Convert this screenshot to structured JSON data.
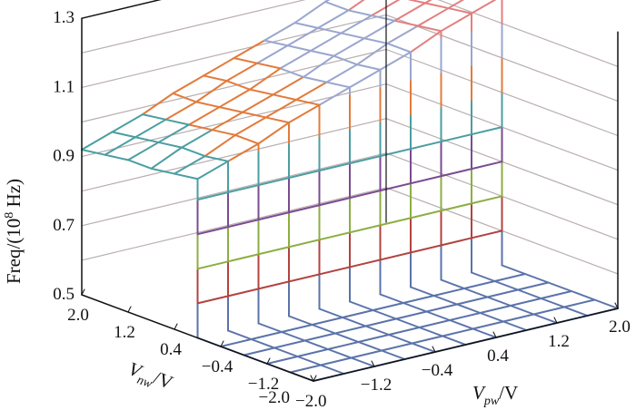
{
  "chart_data": {
    "type": "surface3d",
    "zlabel": "Freq/(10⁸ Hz)",
    "xlabel": "V_nw /V",
    "ylabel": "V_pw /V",
    "xlabel_main": "V",
    "xlabel_sub": "nw",
    "xlabel_unit": "/V",
    "ylabel_main": "V",
    "ylabel_sub": "pw",
    "ylabel_unit": "/V",
    "zlabel_text": "Freq/(10",
    "zlabel_sup": "8",
    "zlabel_end": " Hz)",
    "zlim": [
      0.5,
      1.3
    ],
    "xlim": [
      -2.0,
      2.0
    ],
    "ylim": [
      -2.0,
      2.0
    ],
    "z_ticks": [
      "0.5",
      "0.7",
      "0.9",
      "1.1",
      "1.3"
    ],
    "x_ticks": [
      "2.0",
      "1.2",
      "0.4",
      "−0.4",
      "−1.2",
      "−2.0"
    ],
    "x_tick_values": [
      2.0,
      1.2,
      0.4,
      -0.4,
      -1.2,
      -2.0
    ],
    "y_ticks": [
      "−2.0",
      "−1.2",
      "−0.4",
      "0.4",
      "1.2",
      "2.0"
    ],
    "y_tick_values": [
      -2.0,
      -1.2,
      -0.4,
      0.4,
      1.2,
      2.0
    ],
    "grid": true,
    "vnw": [
      -2.0,
      -1.6,
      -1.2,
      -0.8,
      -0.4,
      0.0,
      0.4,
      0.8,
      1.2,
      1.6,
      2.0
    ],
    "vpw": [
      -2.0,
      -1.6,
      -1.2,
      -0.8,
      -0.4,
      0.0,
      0.4,
      0.8,
      1.2,
      1.6,
      2.0
    ],
    "freq": [
      [
        0.5,
        0.5,
        0.5,
        0.5,
        0.5,
        0.5,
        0.5,
        0.5,
        0.5,
        0.5,
        0.5
      ],
      [
        0.5,
        0.5,
        0.5,
        0.5,
        0.5,
        0.5,
        0.5,
        0.5,
        0.5,
        0.5,
        0.5
      ],
      [
        0.5,
        0.5,
        0.5,
        0.5,
        0.5,
        0.5,
        0.5,
        0.5,
        0.5,
        0.5,
        0.5
      ],
      [
        0.5,
        0.5,
        0.5,
        0.5,
        0.5,
        0.5,
        0.5,
        0.5,
        0.5,
        0.5,
        0.5
      ],
      [
        0.5,
        0.5,
        0.5,
        0.5,
        0.5,
        0.5,
        0.5,
        0.5,
        0.5,
        0.5,
        0.5
      ],
      [
        0.96,
        0.99,
        1.02,
        1.06,
        1.09,
        1.12,
        1.15,
        1.18,
        1.22,
        1.25,
        1.28
      ],
      [
        0.95,
        0.98,
        1.02,
        1.05,
        1.08,
        1.11,
        1.14,
        1.18,
        1.21,
        1.24,
        1.27
      ],
      [
        0.94,
        0.98,
        1.01,
        1.04,
        1.07,
        1.1,
        1.14,
        1.17,
        1.2,
        1.23,
        1.26
      ],
      [
        0.94,
        0.97,
        1.0,
        1.03,
        1.06,
        1.1,
        1.13,
        1.16,
        1.19,
        1.22,
        1.26
      ],
      [
        0.93,
        0.96,
        0.99,
        1.02,
        1.06,
        1.09,
        1.12,
        1.15,
        1.18,
        1.22,
        1.25
      ],
      [
        0.92,
        0.95,
        0.98,
        1.02,
        1.05,
        1.08,
        1.11,
        1.14,
        1.18,
        1.21,
        1.24
      ]
    ],
    "band_colors": [
      "#5b73aa",
      "#b2433f",
      "#8cae42",
      "#7b4b92",
      "#4b9ea2",
      "#e27b3b",
      "#9aa6cf",
      "#e37f7f"
    ],
    "axis_color": "#111111",
    "gridline_color": "#b9aeae"
  }
}
